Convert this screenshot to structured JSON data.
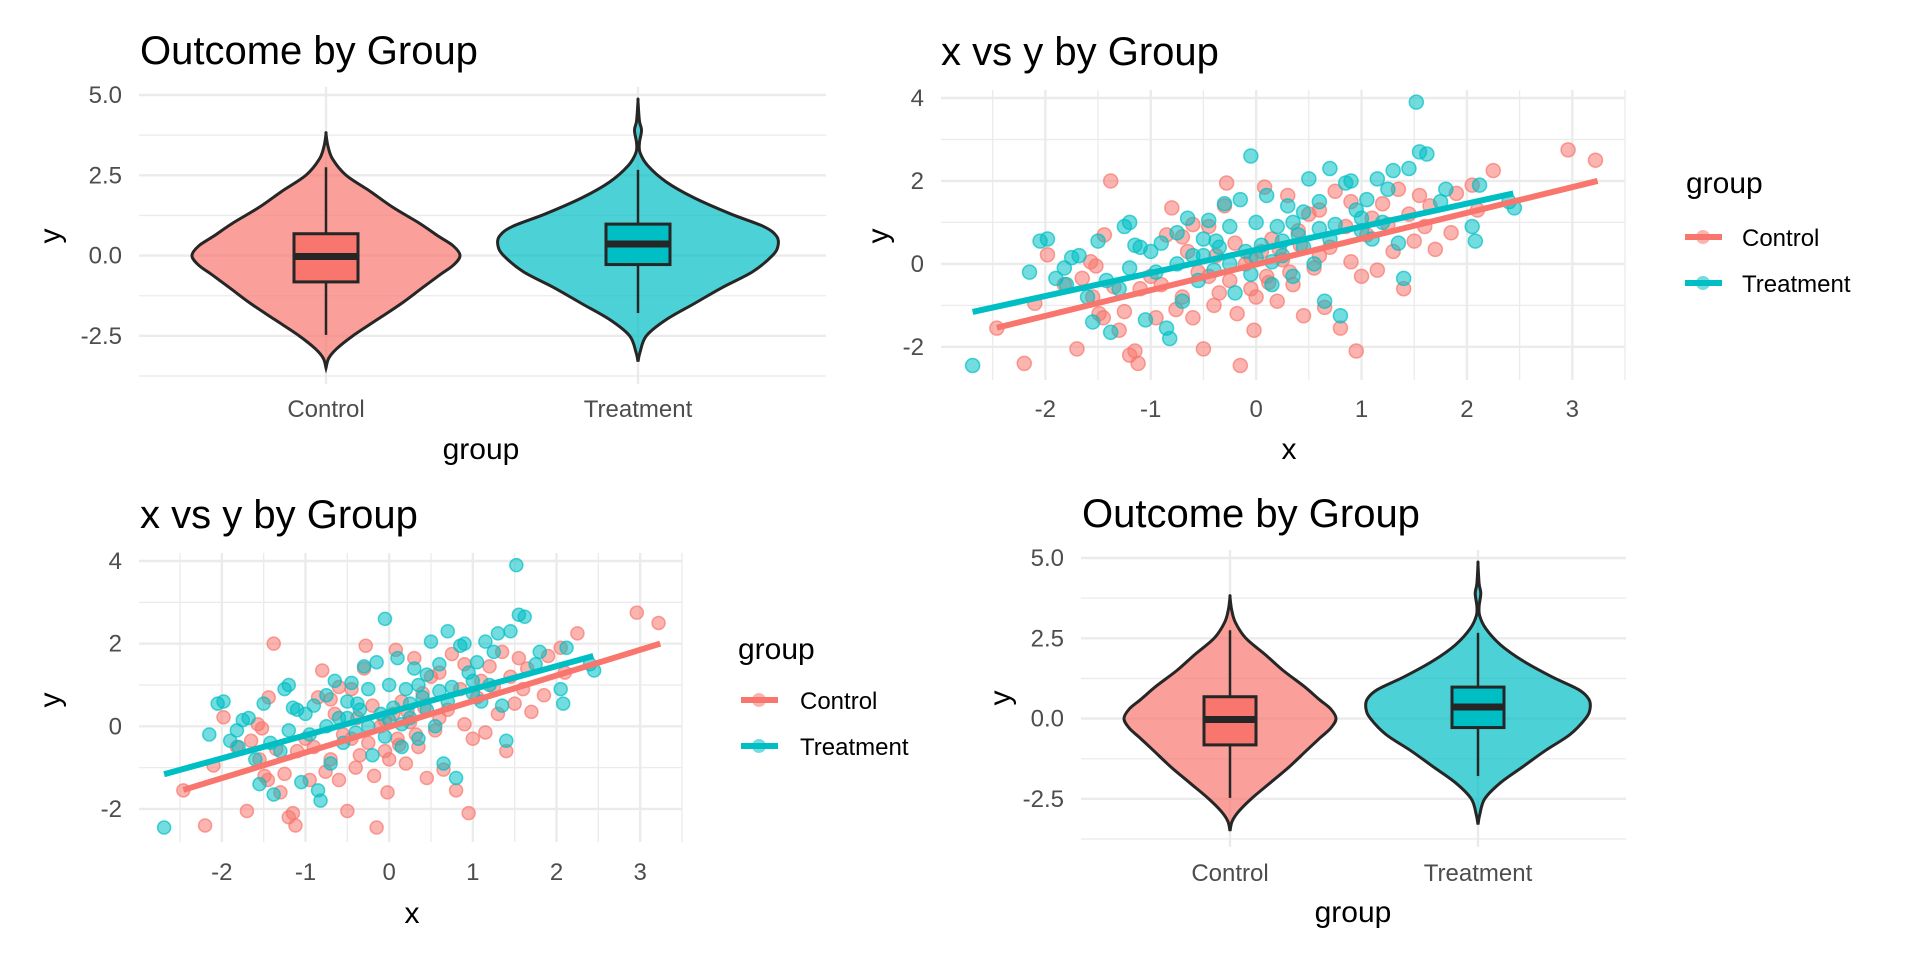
{
  "chart_data": [
    {
      "id": "violin_top_left",
      "type": "violin",
      "title": "Outcome by Group",
      "xlabel": "group",
      "ylabel": "y",
      "categories": [
        "Control",
        "Treatment"
      ],
      "yticks": [
        "5.0",
        "2.5",
        "0.0",
        "-2.5"
      ],
      "ytick_values": [
        5.0,
        2.5,
        0.0,
        -2.5
      ],
      "ylim": [
        -3.75,
        5.0
      ],
      "grid": true,
      "series": [
        {
          "name": "Control",
          "color": "#F8766D",
          "fill": "#F8766D",
          "box": {
            "q1": -0.82,
            "median": -0.03,
            "q3": 0.68,
            "whisker_low": -2.47,
            "whisker_high": 2.75
          },
          "range": [
            -3.5,
            3.78
          ],
          "density": [
            [
              -3.5,
              0.0
            ],
            [
              -3.2,
              0.02
            ],
            [
              -2.9,
              0.08
            ],
            [
              -2.5,
              0.2
            ],
            [
              -2.0,
              0.38
            ],
            [
              -1.5,
              0.56
            ],
            [
              -1.0,
              0.72
            ],
            [
              -0.6,
              0.85
            ],
            [
              -0.3,
              0.95
            ],
            [
              0.0,
              1.0
            ],
            [
              0.3,
              0.95
            ],
            [
              0.6,
              0.84
            ],
            [
              1.0,
              0.7
            ],
            [
              1.5,
              0.5
            ],
            [
              2.0,
              0.33
            ],
            [
              2.5,
              0.15
            ],
            [
              3.0,
              0.05
            ],
            [
              3.4,
              0.015
            ],
            [
              3.78,
              0.0
            ]
          ]
        },
        {
          "name": "Treatment",
          "color": "#00BFC4",
          "fill": "#00BFC4",
          "box": {
            "q1": -0.28,
            "median": 0.36,
            "q3": 0.98,
            "whisker_low": -1.79,
            "whisker_high": 2.67
          },
          "range": [
            -3.3,
            4.8
          ],
          "density": [
            [
              -3.3,
              0.0
            ],
            [
              -3.0,
              0.015
            ],
            [
              -2.5,
              0.06
            ],
            [
              -2.0,
              0.2
            ],
            [
              -1.5,
              0.4
            ],
            [
              -1.0,
              0.6
            ],
            [
              -0.5,
              0.82
            ],
            [
              0.0,
              0.96
            ],
            [
              0.3,
              1.0
            ],
            [
              0.6,
              0.99
            ],
            [
              0.9,
              0.9
            ],
            [
              1.3,
              0.66
            ],
            [
              1.8,
              0.4
            ],
            [
              2.3,
              0.2
            ],
            [
              2.8,
              0.07
            ],
            [
              3.2,
              0.015
            ],
            [
              3.5,
              0.01
            ],
            [
              3.9,
              0.025
            ],
            [
              4.2,
              0.01
            ],
            [
              4.8,
              0.0
            ]
          ]
        }
      ]
    },
    {
      "id": "scatter_top_right",
      "type": "scatter",
      "title": "x vs y by Group",
      "xlabel": "x",
      "ylabel": "y",
      "xticks": [
        "-2",
        "-1",
        "0",
        "1",
        "2",
        "3"
      ],
      "xtick_values": [
        -2,
        -1,
        0,
        1,
        2,
        3
      ],
      "yticks": [
        "4",
        "2",
        "0",
        "-2"
      ],
      "ytick_values": [
        4,
        2,
        0,
        -2
      ],
      "xlim": [
        -2.99,
        3.5
      ],
      "ylim": [
        -2.8,
        4.0
      ],
      "grid": true,
      "legend": {
        "title": "group",
        "position": "right",
        "entries": [
          "Control",
          "Treatment"
        ]
      }
    },
    {
      "id": "scatter_bottom_left",
      "type": "scatter",
      "title": "x vs y by Group",
      "xlabel": "x",
      "ylabel": "y",
      "xticks": [
        "-2",
        "-1",
        "0",
        "1",
        "2",
        "3"
      ],
      "xtick_values": [
        -2,
        -1,
        0,
        1,
        2,
        3
      ],
      "yticks": [
        "4",
        "2",
        "0",
        "-2"
      ],
      "ytick_values": [
        4,
        2,
        0,
        -2
      ],
      "xlim": [
        -2.99,
        3.5
      ],
      "ylim": [
        -2.8,
        4.0
      ],
      "grid": true,
      "legend": {
        "title": "group",
        "position": "right",
        "entries": [
          "Control",
          "Treatment"
        ]
      }
    },
    {
      "id": "violin_bottom_right",
      "type": "violin",
      "title": "Outcome by Group",
      "xlabel": "group",
      "ylabel": "y",
      "categories": [
        "Control",
        "Treatment"
      ],
      "yticks": [
        "5.0",
        "2.5",
        "0.0",
        "-2.5"
      ],
      "ytick_values": [
        5.0,
        2.5,
        0.0,
        -2.5
      ],
      "ylim": [
        -3.75,
        5.0
      ],
      "grid": true
    }
  ],
  "scatter_series": [
    {
      "name": "Control",
      "color": "#F8766D",
      "fit": {
        "x0": -2.46,
        "y0": -1.54,
        "x1": 3.24,
        "y1": 2.0
      },
      "points": [
        [
          -2.46,
          -1.55
        ],
        [
          -2.2,
          -2.4
        ],
        [
          -1.98,
          0.22
        ],
        [
          -2.1,
          -0.95
        ],
        [
          -1.82,
          -0.5
        ],
        [
          -1.7,
          -2.05
        ],
        [
          -1.55,
          -0.8
        ],
        [
          -1.45,
          -1.3
        ],
        [
          -1.38,
          2.0
        ],
        [
          -1.44,
          0.7
        ],
        [
          -1.52,
          -0.05
        ],
        [
          -1.57,
          0.05
        ],
        [
          -1.49,
          -1.2
        ],
        [
          -1.3,
          -1.6
        ],
        [
          -1.2,
          -2.2
        ],
        [
          -1.15,
          -2.1
        ],
        [
          -1.12,
          -2.4
        ],
        [
          -1.25,
          -1.15
        ],
        [
          -1.1,
          -0.6
        ],
        [
          -1.0,
          -0.3
        ],
        [
          -0.95,
          -1.3
        ],
        [
          -0.9,
          -0.5
        ],
        [
          -0.85,
          0.7
        ],
        [
          -0.8,
          1.35
        ],
        [
          -0.76,
          -1.1
        ],
        [
          -0.7,
          -0.8
        ],
        [
          -0.65,
          0.3
        ],
        [
          -0.6,
          -1.3
        ],
        [
          -0.55,
          -0.2
        ],
        [
          -0.5,
          -2.05
        ],
        [
          -0.45,
          0.9
        ],
        [
          -0.4,
          -1.0
        ],
        [
          -0.38,
          0.2
        ],
        [
          -0.35,
          -0.7
        ],
        [
          -0.3,
          1.4
        ],
        [
          -0.28,
          1.95
        ],
        [
          -0.25,
          -0.4
        ],
        [
          -0.2,
          0.5
        ],
        [
          -0.18,
          -1.2
        ],
        [
          -0.15,
          -2.45
        ],
        [
          -0.1,
          0.0
        ],
        [
          -0.05,
          -0.6
        ],
        [
          -0.02,
          -1.6
        ],
        [
          0.0,
          -0.8
        ],
        [
          0.05,
          0.3
        ],
        [
          0.08,
          1.85
        ],
        [
          0.1,
          -0.3
        ],
        [
          0.15,
          0.6
        ],
        [
          0.2,
          -0.9
        ],
        [
          0.25,
          0.1
        ],
        [
          0.3,
          1.65
        ],
        [
          0.35,
          -0.5
        ],
        [
          0.4,
          0.8
        ],
        [
          0.45,
          -1.25
        ],
        [
          0.5,
          1.2
        ],
        [
          0.55,
          -0.1
        ],
        [
          0.6,
          1.3
        ],
        [
          0.65,
          -1.05
        ],
        [
          0.7,
          0.4
        ],
        [
          0.75,
          1.75
        ],
        [
          0.8,
          -1.55
        ],
        [
          0.85,
          0.9
        ],
        [
          0.9,
          1.5
        ],
        [
          0.95,
          -2.1
        ],
        [
          1.0,
          -0.3
        ],
        [
          1.05,
          0.7
        ],
        [
          1.1,
          1.1
        ],
        [
          1.15,
          -0.15
        ],
        [
          1.2,
          1.45
        ],
        [
          1.25,
          0.95
        ],
        [
          1.3,
          0.3
        ],
        [
          1.35,
          1.8
        ],
        [
          1.4,
          -0.6
        ],
        [
          1.45,
          1.2
        ],
        [
          1.5,
          0.55
        ],
        [
          1.55,
          1.65
        ],
        [
          1.6,
          0.9
        ],
        [
          1.65,
          1.4
        ],
        [
          1.7,
          0.35
        ],
        [
          1.85,
          0.75
        ],
        [
          1.9,
          1.7
        ],
        [
          2.05,
          1.9
        ],
        [
          2.1,
          1.3
        ],
        [
          2.25,
          2.25
        ],
        [
          2.96,
          2.75
        ],
        [
          3.22,
          2.5
        ],
        [
          -0.7,
          0.65
        ],
        [
          -0.6,
          0.95
        ],
        [
          -0.45,
          -0.3
        ],
        [
          0.12,
          -0.45
        ],
        [
          0.22,
          0.35
        ],
        [
          0.32,
          -0.2
        ],
        [
          0.42,
          0.45
        ],
        [
          -1.65,
          -0.35
        ],
        [
          -1.35,
          -0.55
        ],
        [
          -0.05,
          0.15
        ],
        [
          0.6,
          0.2
        ],
        [
          0.9,
          0.05
        ]
      ]
    },
    {
      "name": "Treatment",
      "color": "#00BFC4",
      "fit": {
        "x0": -2.69,
        "y0": -1.16,
        "x1": 2.44,
        "y1": 1.7
      },
      "points": [
        [
          -2.69,
          -2.45
        ],
        [
          -2.15,
          -0.2
        ],
        [
          -2.05,
          0.55
        ],
        [
          -1.98,
          0.6
        ],
        [
          -1.9,
          -0.35
        ],
        [
          -1.82,
          -0.1
        ],
        [
          -1.75,
          0.15
        ],
        [
          -1.68,
          0.2
        ],
        [
          -1.6,
          -0.8
        ],
        [
          -1.55,
          -1.4
        ],
        [
          -1.5,
          0.55
        ],
        [
          -1.42,
          -0.4
        ],
        [
          -1.38,
          -1.65
        ],
        [
          -1.3,
          -0.6
        ],
        [
          -1.25,
          0.9
        ],
        [
          -1.2,
          1.0
        ],
        [
          -1.15,
          0.45
        ],
        [
          -1.1,
          0.4
        ],
        [
          -1.05,
          -1.35
        ],
        [
          -1.0,
          0.3
        ],
        [
          -0.95,
          -0.2
        ],
        [
          -0.9,
          0.5
        ],
        [
          -0.85,
          -1.55
        ],
        [
          -0.82,
          -1.8
        ],
        [
          -0.75,
          0.75
        ],
        [
          -0.7,
          -0.9
        ],
        [
          -0.65,
          1.1
        ],
        [
          -0.6,
          0.2
        ],
        [
          -0.55,
          -0.4
        ],
        [
          -0.5,
          0.6
        ],
        [
          -0.45,
          1.05
        ],
        [
          -0.4,
          -0.15
        ],
        [
          -0.35,
          0.4
        ],
        [
          -0.3,
          1.45
        ],
        [
          -0.25,
          0.9
        ],
        [
          -0.2,
          -0.7
        ],
        [
          -0.15,
          1.55
        ],
        [
          -0.1,
          0.3
        ],
        [
          -0.05,
          2.6
        ],
        [
          0.0,
          1.0
        ],
        [
          0.05,
          0.45
        ],
        [
          0.1,
          1.65
        ],
        [
          0.15,
          -0.5
        ],
        [
          0.2,
          0.9
        ],
        [
          0.25,
          0.2
        ],
        [
          0.3,
          1.4
        ],
        [
          0.35,
          -0.3
        ],
        [
          0.4,
          0.7
        ],
        [
          0.45,
          1.25
        ],
        [
          0.5,
          2.05
        ],
        [
          0.55,
          0.0
        ],
        [
          0.6,
          1.5
        ],
        [
          0.65,
          -0.9
        ],
        [
          0.7,
          2.3
        ],
        [
          0.75,
          0.95
        ],
        [
          0.8,
          -1.25
        ],
        [
          0.85,
          1.95
        ],
        [
          0.9,
          2.0
        ],
        [
          0.95,
          1.3
        ],
        [
          1.0,
          0.8
        ],
        [
          1.05,
          1.55
        ],
        [
          1.1,
          0.6
        ],
        [
          1.15,
          2.05
        ],
        [
          1.2,
          1.0
        ],
        [
          1.25,
          1.8
        ],
        [
          1.3,
          2.25
        ],
        [
          1.35,
          0.5
        ],
        [
          1.4,
          -0.35
        ],
        [
          1.45,
          2.3
        ],
        [
          1.52,
          3.9
        ],
        [
          1.55,
          2.7
        ],
        [
          1.62,
          2.65
        ],
        [
          1.75,
          1.5
        ],
        [
          1.8,
          1.8
        ],
        [
          2.05,
          0.9
        ],
        [
          2.08,
          0.55
        ],
        [
          2.12,
          1.9
        ],
        [
          2.4,
          1.5
        ],
        [
          2.45,
          1.35
        ],
        [
          -0.75,
          0.0
        ],
        [
          -0.5,
          0.2
        ],
        [
          -0.25,
          0.0
        ],
        [
          0.0,
          0.15
        ],
        [
          0.25,
          0.55
        ],
        [
          0.45,
          0.4
        ],
        [
          0.7,
          0.6
        ],
        [
          1.0,
          1.1
        ],
        [
          -1.8,
          -0.5
        ],
        [
          -1.2,
          -0.1
        ],
        [
          -0.05,
          -0.25
        ],
        [
          0.35,
          1.0
        ],
        [
          0.6,
          0.85
        ],
        [
          0.15,
          0.05
        ],
        [
          -0.38,
          0.55
        ]
      ]
    }
  ],
  "scatter_style": {
    "alpha": 0.55
  },
  "legend": {
    "title": "group",
    "entries": [
      {
        "label": "Control",
        "color": "#F8766D"
      },
      {
        "label": "Treatment",
        "color": "#00BFC4"
      }
    ]
  }
}
